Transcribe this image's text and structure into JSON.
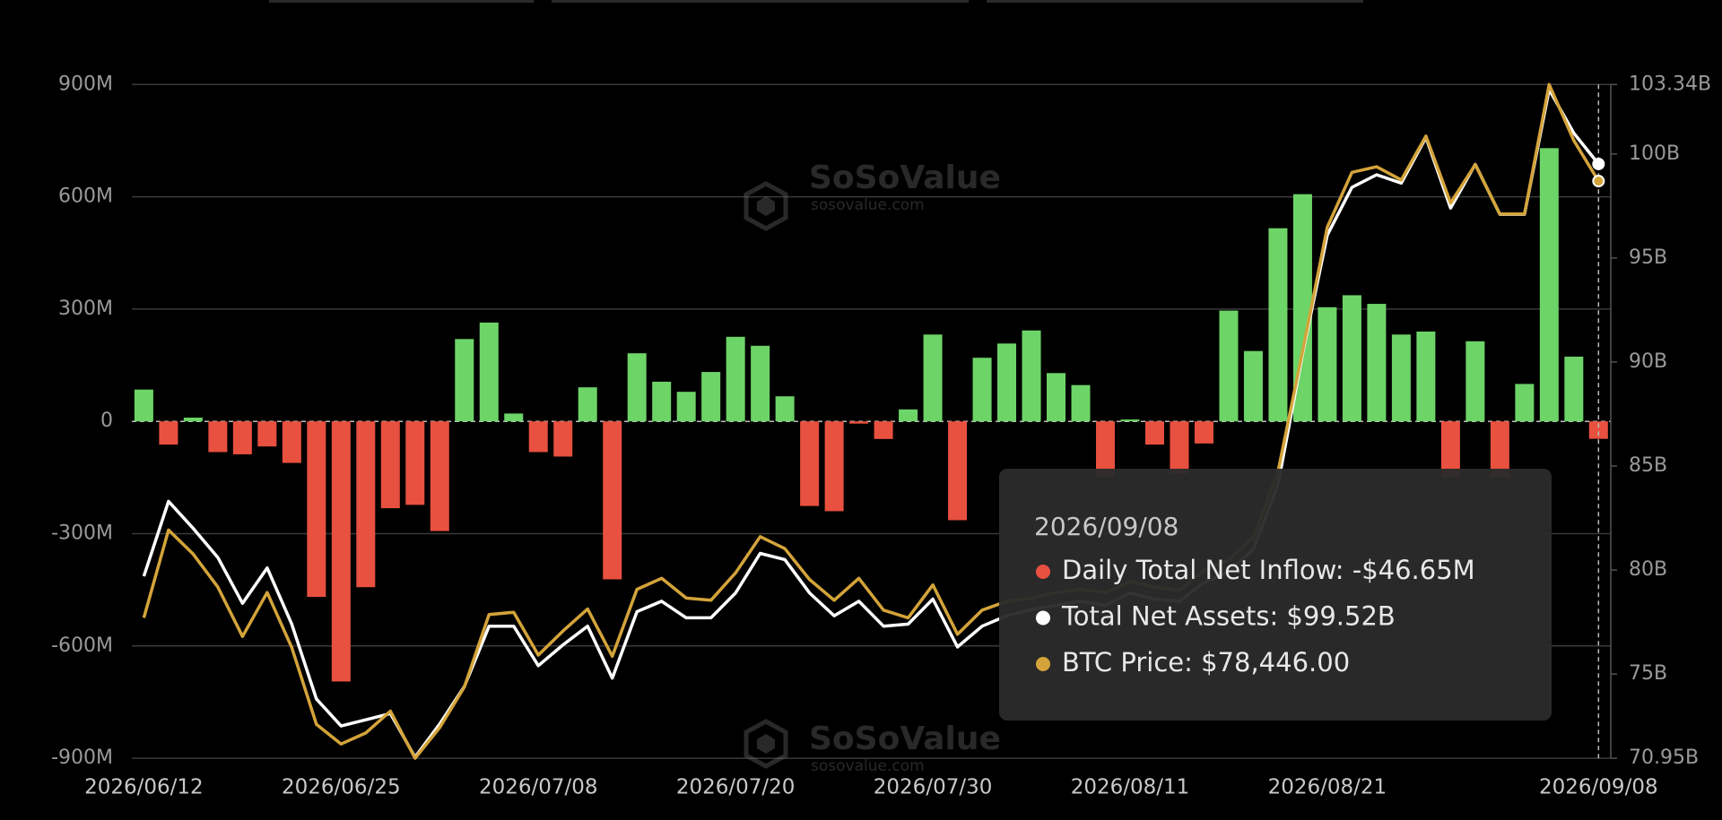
{
  "chart_data": {
    "type": "bar_line",
    "categories": [
      "2026/06/12",
      null,
      null,
      null,
      null,
      null,
      null,
      null,
      "2026/06/25",
      null,
      null,
      null,
      null,
      null,
      null,
      null,
      "2026/07/08",
      null,
      null,
      null,
      null,
      null,
      null,
      null,
      "2026/07/20",
      null,
      null,
      null,
      null,
      null,
      null,
      null,
      "2026/07/30",
      null,
      null,
      null,
      null,
      null,
      null,
      null,
      "2026/08/11",
      null,
      null,
      null,
      null,
      null,
      null,
      null,
      "2026/08/21",
      null,
      null,
      null,
      null,
      null,
      null,
      null,
      null,
      null,
      null,
      "2026/09/08"
    ],
    "series": [
      {
        "type": "bar",
        "axis": "y",
        "color": "#6dd468",
        "negative_color": "#e8503f",
        "values": [
          85,
          -62,
          10,
          -82,
          -88,
          -67,
          -111,
          -469,
          -695,
          -443,
          -232,
          -223,
          -293,
          220,
          264,
          21,
          -82,
          -94,
          91,
          -422,
          182,
          106,
          79,
          132,
          226,
          202,
          67,
          -226,
          -240,
          -6,
          -47,
          32,
          232,
          -264,
          170,
          208,
          243,
          129,
          97,
          -150,
          5,
          -62,
          -140,
          -59,
          296,
          188,
          516,
          607,
          305,
          337,
          314,
          232,
          240,
          -150,
          214,
          -150,
          100,
          730,
          173,
          -46.65
        ]
      },
      {
        "type": "line",
        "axis": "y2",
        "color": "#ffffff",
        "values": [
          79.7,
          83.3,
          82.0,
          80.6,
          78.4,
          80.1,
          77.4,
          73.8,
          72.5,
          72.8,
          73.1,
          71.0,
          72.6,
          74.4,
          77.3,
          77.3,
          75.4,
          76.4,
          77.3,
          74.8,
          78.0,
          78.5,
          77.7,
          77.7,
          78.9,
          80.8,
          80.5,
          78.9,
          77.8,
          78.5,
          77.3,
          77.4,
          78.6,
          76.3,
          77.3,
          77.8,
          78.1,
          78.3,
          78.5,
          78.3,
          78.9,
          78.6,
          78.5,
          79.4,
          79.9,
          81.0,
          84.1,
          90.4,
          96.1,
          98.4,
          99.0,
          98.6,
          100.8,
          97.4,
          99.5,
          97.1,
          97.1,
          103.1,
          101.0,
          99.52
        ]
      },
      {
        "type": "line",
        "axis": "y3",
        "color": "#d4a43a",
        "values": [
          71417,
          72830,
          72442,
          71912,
          71117,
          71824,
          70940,
          69704,
          69386,
          69563,
          69916,
          69157,
          69651,
          70305,
          71470,
          71506,
          70817,
          71205,
          71559,
          70799,
          71876,
          72053,
          71735,
          71700,
          72141,
          72724,
          72530,
          72035,
          71700,
          72053,
          71541,
          71417,
          71947,
          71152,
          71541,
          71682,
          71735,
          71824,
          71876,
          71824,
          72000,
          71912,
          71859,
          72177,
          72353,
          72706,
          73766,
          75709,
          77704,
          78587,
          78676,
          78464,
          79170,
          78093,
          78711,
          77916,
          77916,
          80000,
          79099,
          78446
        ]
      }
    ],
    "ylim": [
      -900,
      900
    ],
    "yticks": [
      {
        "value": 900,
        "label": "900M"
      },
      {
        "value": 600,
        "label": "600M"
      },
      {
        "value": 300,
        "label": "300M"
      },
      0,
      {
        "value": -300,
        "label": "-300M"
      },
      {
        "value": -600,
        "label": "-600M"
      },
      {
        "value": -900,
        "label": "-900M"
      }
    ],
    "y2lim": [
      70.95,
      103.34
    ],
    "y2ticks": [
      {
        "value": 103.34,
        "label": "103.34B"
      },
      {
        "value": 100,
        "label": "100B"
      },
      {
        "value": 95,
        "label": "95B"
      },
      {
        "value": 90,
        "label": "90B"
      },
      {
        "value": 85,
        "label": "85B"
      },
      {
        "value": 80,
        "label": "80B"
      },
      {
        "value": 75,
        "label": "75B"
      },
      {
        "value": 70.95,
        "label": "70.95B"
      }
    ],
    "y3lim": [
      69157,
      80000
    ],
    "grid": true,
    "watermark": {
      "name": "SoSoValue",
      "url": "sosovalue.com"
    },
    "tooltip": {
      "date": "2026/09/08",
      "rows": [
        {
          "text": "Daily Total Net Inflow: -$46.65M",
          "color": "#e8503f"
        },
        {
          "text": "Total Net Assets: $99.52B",
          "color": "#ffffff"
        },
        {
          "text": "BTC Price: $78,446.00",
          "color": "#d4a43a"
        }
      ]
    }
  }
}
